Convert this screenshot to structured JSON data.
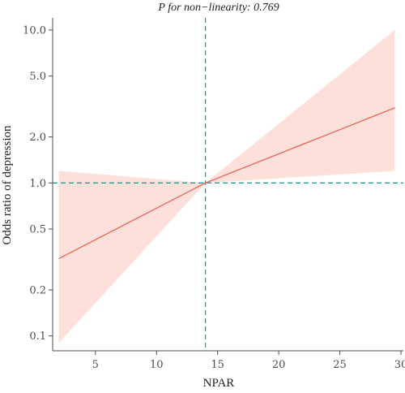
{
  "chart_data": {
    "type": "line",
    "title": "",
    "subtitle": "P for non−linearity: 0.769",
    "xlabel": "NPAR",
    "ylabel": "Odds ratio of depression",
    "xlim": [
      1.5,
      30.2
    ],
    "ylim": [
      0.08,
      12.0
    ],
    "yscale": "log",
    "xticks": [
      5,
      10,
      15,
      20,
      25,
      30
    ],
    "yticks": [
      0.1,
      0.2,
      0.5,
      1.0,
      2.0,
      5.0,
      10.0
    ],
    "ytick_labels": [
      "0.1",
      "0.2",
      "0.5",
      "1.0",
      "2.0",
      "5.0",
      "10.0"
    ],
    "grid": false,
    "reference_lines": {
      "x": 14,
      "y": 1.0
    },
    "series": [
      {
        "x": [
          2.0,
          14.0,
          29.5
        ],
        "y": [
          0.32,
          1.0,
          3.1
        ],
        "ci_lower": [
          0.09,
          1.0,
          1.2
        ],
        "ci_upper": [
          1.2,
          1.0,
          10.0
        ]
      }
    ],
    "colors": {
      "line": "#e8665a",
      "band": "#fde0da",
      "reference": "#2a9d8f",
      "axis": "#4d4d4d",
      "text": "#222222"
    }
  }
}
